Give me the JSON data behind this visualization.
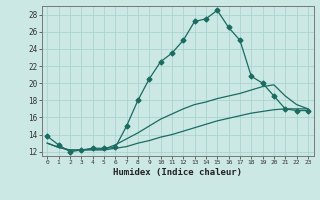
{
  "xlabel": "Humidex (Indice chaleur)",
  "ylabel": "",
  "background_color": "#cce8e5",
  "grid_color": "#aad4d0",
  "line_color": "#1a6b60",
  "xlim": [
    -0.5,
    23.5
  ],
  "ylim": [
    11.5,
    29.0
  ],
  "xticks": [
    0,
    1,
    2,
    3,
    4,
    5,
    6,
    7,
    8,
    9,
    10,
    11,
    12,
    13,
    14,
    15,
    16,
    17,
    18,
    19,
    20,
    21,
    22,
    23
  ],
  "yticks": [
    12,
    14,
    16,
    18,
    20,
    22,
    24,
    26,
    28
  ],
  "line1_x": [
    0,
    1,
    2,
    3,
    4,
    5,
    6,
    7,
    8,
    9,
    10,
    11,
    12,
    13,
    14,
    15,
    16,
    17,
    18,
    19,
    20,
    21,
    22,
    23
  ],
  "line1_y": [
    13.8,
    12.8,
    12.0,
    12.2,
    12.4,
    12.4,
    12.5,
    15.0,
    18.0,
    20.5,
    22.5,
    23.5,
    25.0,
    27.2,
    27.5,
    28.5,
    26.5,
    25.0,
    20.8,
    20.0,
    18.5,
    17.0,
    16.8,
    16.8
  ],
  "line2_x": [
    0,
    23
  ],
  "line2_y": [
    13.0,
    17.0
  ],
  "line3_x": [
    0,
    23
  ],
  "line3_y": [
    13.0,
    17.0
  ],
  "line2_actual_x": [
    0,
    1,
    2,
    3,
    4,
    5,
    6,
    7,
    8,
    9,
    10,
    11,
    12,
    13,
    14,
    15,
    16,
    17,
    18,
    19,
    20,
    21,
    22,
    23
  ],
  "line2_actual_y": [
    13.0,
    12.5,
    12.2,
    12.2,
    12.2,
    12.2,
    12.4,
    12.6,
    13.0,
    13.3,
    13.7,
    14.0,
    14.4,
    14.8,
    15.2,
    15.6,
    15.9,
    16.2,
    16.5,
    16.7,
    16.9,
    17.0,
    17.0,
    17.0
  ],
  "line3_actual_x": [
    0,
    1,
    2,
    3,
    4,
    5,
    6,
    7,
    8,
    9,
    10,
    11,
    12,
    13,
    14,
    15,
    16,
    17,
    18,
    19,
    20,
    21,
    22,
    23
  ],
  "line3_actual_y": [
    13.0,
    12.5,
    12.2,
    12.2,
    12.3,
    12.3,
    12.8,
    13.5,
    14.2,
    15.0,
    15.8,
    16.4,
    17.0,
    17.5,
    17.8,
    18.2,
    18.5,
    18.8,
    19.2,
    19.6,
    19.8,
    18.5,
    17.5,
    17.0
  ],
  "marker": "D",
  "markersize": 2.5,
  "linewidth": 0.9
}
